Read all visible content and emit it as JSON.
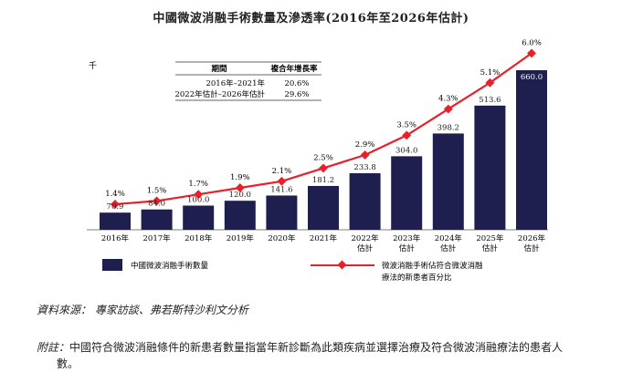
{
  "title": "中國微波消融手術數量及滲透率(2016年至2026年估計)",
  "unit_label": "千",
  "cagr_table": {
    "header_period": "期間",
    "header_cagr": "複合年增長率",
    "rows": [
      {
        "period": "2016年–2021年",
        "cagr": "20.6%"
      },
      {
        "period": "2022年估計–2026年估計",
        "cagr": "29.6%"
      }
    ]
  },
  "chart_data": {
    "type": "bar",
    "title": "中國微波消融手術數量及滲透率(2016年至2026年估計)",
    "categories": [
      "2016年",
      "2017年",
      "2018年",
      "2019年",
      "2020年",
      "2021年",
      "2022年估計",
      "2023年估計",
      "2024年估計",
      "2025年估計",
      "2026年估計"
    ],
    "category_lines": [
      [
        "2016年"
      ],
      [
        "2017年"
      ],
      [
        "2018年"
      ],
      [
        "2019年"
      ],
      [
        "2020年"
      ],
      [
        "2021年"
      ],
      [
        "2022年",
        "估計"
      ],
      [
        "2023年",
        "估計"
      ],
      [
        "2024年",
        "估計"
      ],
      [
        "2025年",
        "估計"
      ],
      [
        "2026年",
        "估計"
      ]
    ],
    "series": [
      {
        "name": "中國微波消融手術數量",
        "type": "bar",
        "unit": "千",
        "values": [
          70.9,
          84.0,
          100.0,
          120.0,
          141.6,
          181.2,
          233.8,
          304.0,
          398.2,
          513.6,
          660.0
        ],
        "labels": [
          "70.9",
          "84.0",
          "100.0",
          "120.0",
          "141.6",
          "181.2",
          "233.8",
          "304.0",
          "398.2",
          "513.6",
          "660.0"
        ],
        "color": "#1f1f4f"
      },
      {
        "name": "微波消融手術佔符合微波消融療法的新患者百分比",
        "type": "line",
        "unit": "%",
        "values": [
          1.4,
          1.5,
          1.7,
          1.9,
          2.1,
          2.5,
          2.9,
          3.5,
          4.3,
          5.1,
          6.0
        ],
        "labels": [
          "1.4%",
          "1.5%",
          "1.7%",
          "1.9%",
          "2.1%",
          "2.5%",
          "2.9%",
          "3.5%",
          "4.3%",
          "5.1%",
          "6.0%"
        ],
        "color": "#e8202a"
      }
    ],
    "legend": [
      "中國微波消融手術數量",
      "微波消融手術佔符合微波消融療法的新患者百分比"
    ],
    "legend_lines": [
      [
        "中國微波消融手術數量"
      ],
      [
        "微波消融手術佔符合微波消融",
        "療法的新患者百分比"
      ]
    ],
    "legend_position": "bottom"
  },
  "source": "資料來源：  專家訪談、弗若斯特沙利文分析",
  "note": {
    "lead": "附註：",
    "text": "中國符合微波消融條件的新患者數量指當年新診斷為此類疾病並選擇治療及符合微波消融療法的患者人數。"
  }
}
